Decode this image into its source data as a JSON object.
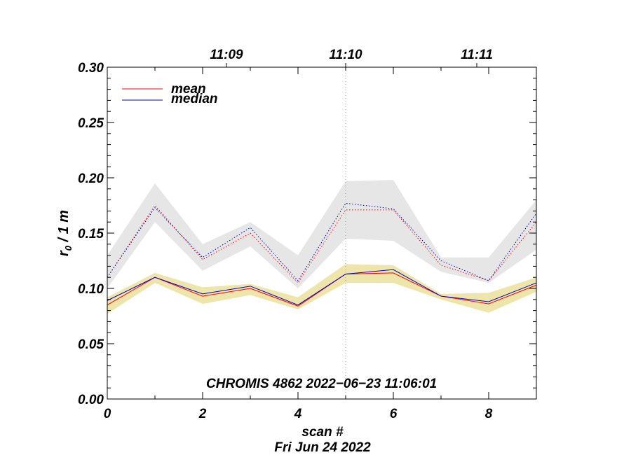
{
  "chart_data": {
    "type": "line",
    "xlabel": "scan #",
    "ylabel_main": "r",
    "ylabel_sub": "0",
    "ylabel_rest": " / 1 m",
    "date_label": "Fri Jun 24 2022",
    "annotation": "CHROMIS 4862 2022−06−23 11:06:01",
    "xlim": [
      0,
      9
    ],
    "ylim": [
      0,
      0.3
    ],
    "xticks": [
      "0",
      "2",
      "4",
      "6",
      "8"
    ],
    "yticks": [
      "0.00",
      "0.05",
      "0.10",
      "0.15",
      "0.20",
      "0.25",
      "0.30"
    ],
    "top_ticks": [
      {
        "label": "11:09",
        "x": 2.5
      },
      {
        "label": "11:10",
        "x": 5.0
      },
      {
        "label": "11:11",
        "x": 7.75
      }
    ],
    "marker_line_x": 5.0,
    "x": [
      0,
      1,
      2,
      3,
      4,
      5,
      6,
      7,
      8,
      9
    ],
    "series": [
      {
        "name": "mean",
        "color": "#ff0000",
        "style": "solid",
        "values": [
          0.085,
          0.11,
          0.093,
          0.1,
          0.084,
          0.113,
          0.114,
          0.093,
          0.086,
          0.103
        ]
      },
      {
        "name": "median",
        "color": "#0000cc",
        "style": "solid",
        "values": [
          0.089,
          0.11,
          0.095,
          0.102,
          0.085,
          0.113,
          0.117,
          0.093,
          0.088,
          0.105
        ]
      },
      {
        "color": "#ff0000",
        "style": "dotted",
        "values": [
          0.11,
          0.175,
          0.126,
          0.15,
          0.105,
          0.171,
          0.171,
          0.121,
          0.107,
          0.16
        ]
      },
      {
        "color": "#0000cc",
        "style": "dotted",
        "values": [
          0.11,
          0.173,
          0.128,
          0.155,
          0.107,
          0.177,
          0.172,
          0.125,
          0.107,
          0.168
        ]
      }
    ],
    "bands": [
      {
        "color": "#e6e6e6",
        "lower": [
          0.1,
          0.16,
          0.116,
          0.138,
          0.1,
          0.145,
          0.143,
          0.115,
          0.105,
          0.135
        ],
        "upper": [
          0.13,
          0.195,
          0.14,
          0.16,
          0.13,
          0.197,
          0.198,
          0.128,
          0.128,
          0.18
        ]
      },
      {
        "color": "#eee5ab",
        "lower": [
          0.077,
          0.105,
          0.086,
          0.094,
          0.081,
          0.105,
          0.105,
          0.09,
          0.078,
          0.097
        ],
        "upper": [
          0.092,
          0.114,
          0.101,
          0.104,
          0.092,
          0.122,
          0.121,
          0.095,
          0.096,
          0.11
        ]
      }
    ],
    "legend": [
      {
        "label": "mean",
        "color": "#ff0000"
      },
      {
        "label": "median",
        "color": "#0000cc"
      }
    ],
    "legend_position": "top-left",
    "grid": false
  }
}
